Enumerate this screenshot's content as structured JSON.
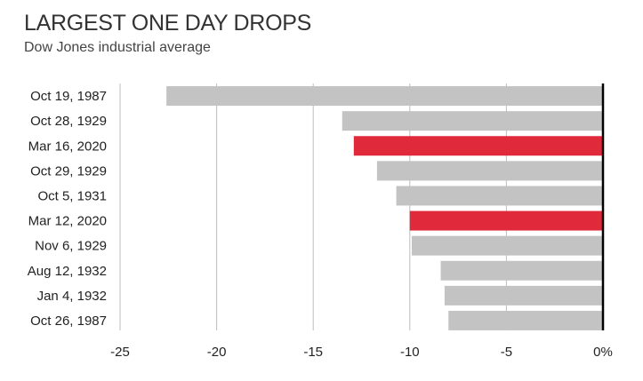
{
  "chart_data": {
    "type": "bar",
    "orientation": "horizontal",
    "title": "LARGEST ONE DAY DROPS",
    "subtitle": "Dow Jones industrial average",
    "categories": [
      "Oct 19, 1987",
      "Oct 28, 1929",
      "Mar 16, 2020",
      "Oct 29, 1929",
      "Oct 5, 1931",
      "Mar 12, 2020",
      "Nov 6, 1929",
      "Aug 12, 1932",
      "Jan 4, 1932",
      "Oct 26, 1987"
    ],
    "values": [
      -22.6,
      -13.5,
      -12.9,
      -11.7,
      -10.7,
      -10.0,
      -9.9,
      -8.4,
      -8.2,
      -8.0
    ],
    "highlighted": [
      "Mar 16, 2020",
      "Mar 12, 2020"
    ],
    "xlim": [
      -25,
      0
    ],
    "xticks": [
      -25,
      -20,
      -15,
      -10,
      -5,
      0
    ],
    "xtick_labels": [
      "-25",
      "-20",
      "-15",
      "-10",
      "-5",
      "0%"
    ],
    "grid": "vertical",
    "colors": {
      "bar": "#c3c3c4",
      "highlight": "#e0293a",
      "grid": "#bdbdbd",
      "axis": "#000000"
    }
  }
}
